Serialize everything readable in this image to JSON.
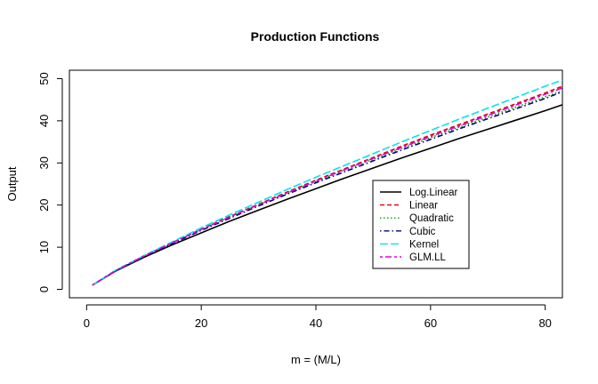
{
  "chart_data": {
    "type": "line",
    "title": "Production Functions",
    "xlabel": "m = (M/L)",
    "ylabel": "Output",
    "xlim": [
      -3,
      83
    ],
    "ylim": [
      -2,
      52
    ],
    "xticks": [
      0,
      20,
      40,
      60,
      80
    ],
    "yticks": [
      0,
      10,
      20,
      30,
      40,
      50
    ],
    "legend_position": "center-right",
    "x": [
      1,
      5,
      10,
      15,
      20,
      25,
      30,
      35,
      40,
      45,
      50,
      55,
      60,
      65,
      70,
      75,
      80,
      83
    ],
    "series": [
      {
        "name": "Log.Linear",
        "color": "#000000",
        "dash": "solid",
        "values": [
          1.0,
          4.3,
          7.6,
          10.6,
          13.4,
          16.2,
          18.8,
          21.4,
          23.9,
          26.4,
          28.8,
          31.2,
          33.5,
          35.8,
          38.0,
          40.2,
          42.4,
          43.8
        ]
      },
      {
        "name": "Linear",
        "color": "#DF0000",
        "dash": "dashed",
        "values": [
          1.0,
          4.4,
          7.9,
          11.1,
          14.3,
          17.3,
          20.2,
          23.1,
          25.9,
          28.6,
          31.3,
          34.0,
          36.6,
          39.1,
          41.6,
          44.1,
          46.6,
          48.2
        ]
      },
      {
        "name": "Quadratic",
        "color": "#00A000",
        "dash": "dotted",
        "values": [
          1.0,
          4.4,
          7.9,
          11.1,
          14.2,
          17.2,
          20.1,
          22.9,
          25.6,
          28.3,
          30.9,
          33.5,
          36.0,
          38.5,
          40.9,
          43.3,
          45.7,
          47.1
        ]
      },
      {
        "name": "Cubic",
        "color": "#000080",
        "dash": "dot-dash",
        "values": [
          1.0,
          4.3,
          7.8,
          10.9,
          14.0,
          16.9,
          19.8,
          22.6,
          25.3,
          27.9,
          30.5,
          33.1,
          35.6,
          38.1,
          40.5,
          42.9,
          45.3,
          46.9
        ]
      },
      {
        "name": "Kernel",
        "color": "#00E5EE",
        "dash": "longdash",
        "values": [
          1.0,
          4.5,
          8.0,
          11.3,
          14.6,
          17.7,
          20.7,
          23.7,
          26.6,
          29.4,
          32.2,
          35.0,
          37.7,
          40.4,
          43.0,
          45.6,
          48.2,
          49.7
        ]
      },
      {
        "name": "GLM.LL",
        "color": "#E000E0",
        "dash": "twodash",
        "values": [
          1.0,
          4.4,
          7.9,
          11.1,
          14.2,
          17.2,
          20.1,
          22.9,
          25.7,
          28.4,
          31.1,
          33.7,
          36.3,
          38.8,
          41.3,
          43.8,
          46.3,
          47.8
        ]
      }
    ]
  }
}
